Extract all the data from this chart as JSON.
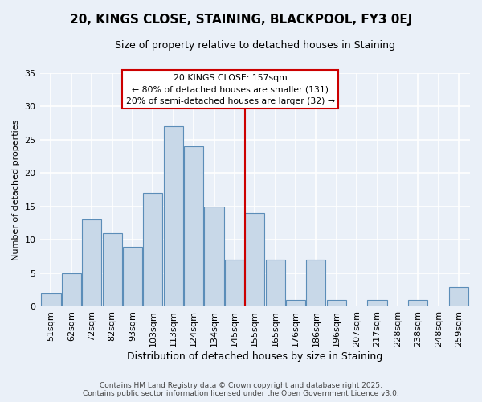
{
  "title": "20, KINGS CLOSE, STAINING, BLACKPOOL, FY3 0EJ",
  "subtitle": "Size of property relative to detached houses in Staining",
  "xlabel": "Distribution of detached houses by size in Staining",
  "ylabel": "Number of detached properties",
  "bar_labels": [
    "51sqm",
    "62sqm",
    "72sqm",
    "82sqm",
    "93sqm",
    "103sqm",
    "113sqm",
    "124sqm",
    "134sqm",
    "145sqm",
    "155sqm",
    "165sqm",
    "176sqm",
    "186sqm",
    "196sqm",
    "207sqm",
    "217sqm",
    "228sqm",
    "238sqm",
    "248sqm",
    "259sqm"
  ],
  "bar_values": [
    2,
    5,
    13,
    11,
    9,
    17,
    27,
    24,
    15,
    7,
    14,
    7,
    1,
    7,
    1,
    0,
    1,
    0,
    1,
    0,
    3
  ],
  "bar_color": "#c8d8e8",
  "bar_edge_color": "#5b8db8",
  "vline_color": "#cc0000",
  "annotation_line1": "20 KINGS CLOSE: 157sqm",
  "annotation_line2": "← 80% of detached houses are smaller (131)",
  "annotation_line3": "20% of semi-detached houses are larger (32) →",
  "annotation_box_color": "#cc0000",
  "ylim": [
    0,
    35
  ],
  "yticks": [
    0,
    5,
    10,
    15,
    20,
    25,
    30,
    35
  ],
  "bg_color": "#eaf0f8",
  "grid_color": "#ffffff",
  "footer1": "Contains HM Land Registry data © Crown copyright and database right 2025.",
  "footer2": "Contains public sector information licensed under the Open Government Licence v3.0.",
  "title_fontsize": 11,
  "subtitle_fontsize": 9,
  "xlabel_fontsize": 9,
  "ylabel_fontsize": 8,
  "tick_fontsize": 8,
  "footer_fontsize": 6.5
}
